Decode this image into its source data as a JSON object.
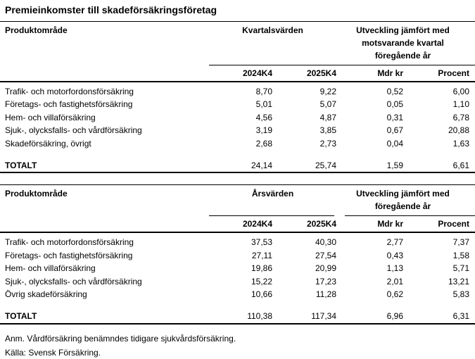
{
  "title": "Premieinkomster till skadeförsäkringsföretag",
  "tables": [
    {
      "product_column_header": "Produktområde",
      "value_group_header": "Kvartalsvärden",
      "change_group_header": "Utveckling jämfört med\nmotsvarande kvartal\nföregående år",
      "column_headers": [
        "2024K4",
        "2025K4",
        "Mdr kr",
        "Procent"
      ],
      "rows": [
        {
          "label": "Trafik- och motorfordonsförsäkring",
          "values": [
            "8,70",
            "9,22",
            "0,52",
            "6,00"
          ]
        },
        {
          "label": "Företags- och fastighetsförsäkring",
          "values": [
            "5,01",
            "5,07",
            "0,05",
            "1,10"
          ]
        },
        {
          "label": "Hem- och villaförsäkring",
          "values": [
            "4,56",
            "4,87",
            "0,31",
            "6,78"
          ]
        },
        {
          "label": "Sjuk-, olycksfalls- och vårdförsäkring",
          "values": [
            "3,19",
            "3,85",
            "0,67",
            "20,88"
          ]
        },
        {
          "label": "Skadeförsäkring, övrigt",
          "values": [
            "2,68",
            "2,73",
            "0,04",
            "1,63"
          ]
        }
      ],
      "total": {
        "label": "TOTALT",
        "values": [
          "24,14",
          "25,74",
          "1,59",
          "6,61"
        ]
      }
    },
    {
      "product_column_header": "Produktområde",
      "value_group_header": "Årsvärden",
      "change_group_header": "Utveckling jämfört med\nföregående år",
      "column_headers": [
        "2024K4",
        "2025K4",
        "Mdr kr",
        "Procent"
      ],
      "rows": [
        {
          "label": "Trafik- och motorfordonsförsäkring",
          "values": [
            "37,53",
            "40,30",
            "2,77",
            "7,37"
          ]
        },
        {
          "label": "Företags- och fastighetsförsäkring",
          "values": [
            "27,11",
            "27,54",
            "0,43",
            "1,58"
          ]
        },
        {
          "label": "Hem- och villaförsäkring",
          "values": [
            "19,86",
            "20,99",
            "1,13",
            "5,71"
          ]
        },
        {
          "label": "Sjuk-, olycksfalls- och vårdförsäkring",
          "values": [
            "15,22",
            "17,23",
            "2,01",
            "13,21"
          ]
        },
        {
          "label": "Övrig skadeförsäkring",
          "values": [
            "10,66",
            "11,28",
            "0,62",
            "5,83"
          ]
        }
      ],
      "total": {
        "label": "TOTALT",
        "values": [
          "110,38",
          "117,34",
          "6,96",
          "6,31"
        ]
      }
    }
  ],
  "footnotes": {
    "note": "Anm. Vårdförsäkring benämndes tidigare sjukvårdsförsäkring.",
    "source": "Källa: Svensk Försäkring."
  },
  "colors": {
    "text": "#000000",
    "rule": "#000000",
    "background": "#ffffff"
  }
}
